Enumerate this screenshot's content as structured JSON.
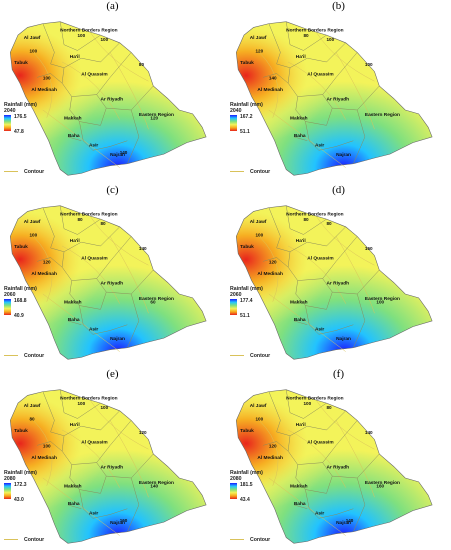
{
  "panels": [
    {
      "label": "(a)",
      "title": "Rainfall (mm)",
      "year": "2040",
      "max": "176.5",
      "min": "47.8",
      "contours": [
        "100",
        "100",
        "100",
        "100",
        "80",
        "120",
        "140"
      ]
    },
    {
      "label": "(b)",
      "title": "Rainfall (mm)",
      "year": "2040",
      "max": "167.2",
      "min": "51.1",
      "contours": [
        "80",
        "100",
        "120",
        "140",
        "100"
      ]
    },
    {
      "label": "(c)",
      "title": "Rainfall (mm)",
      "year": "2060",
      "max": "168.8",
      "min": "40.9",
      "contours": [
        "80",
        "80",
        "100",
        "120",
        "140",
        "60"
      ]
    },
    {
      "label": "(d)",
      "title": "Rainfall (mm)",
      "year": "2060",
      "max": "177.4",
      "min": "51.1",
      "contours": [
        "80",
        "80",
        "100",
        "120",
        "160",
        "100"
      ]
    },
    {
      "label": "(e)",
      "title": "Rainfall (mm)",
      "year": "2080",
      "max": "172.3",
      "min": "43.0",
      "contours": [
        "100",
        "100",
        "80",
        "100",
        "120",
        "140",
        "160"
      ]
    },
    {
      "label": "(f)",
      "title": "Rainfall (mm)",
      "year": "2080",
      "max": "181.5",
      "min": "43.4",
      "contours": [
        "100",
        "80",
        "100",
        "120",
        "140",
        "160",
        "140"
      ]
    }
  ],
  "regions": [
    "Al Jawf",
    "Northern Borders Region",
    "Tabuk",
    "Ha'il",
    "Al Quassim",
    "Al Medinah",
    "Ar Riyadh",
    "Eastern Region",
    "Makkah",
    "Baha",
    "Asir",
    "Najran"
  ],
  "legend_contour": "Contour",
  "colors": {
    "max": "#1a1aff",
    "high": "#22c3ff",
    "mid": "#7fe07f",
    "low_mid": "#f3f35a",
    "low": "#f7a81c",
    "min": "#e8251c",
    "contour": "#d9c25a",
    "boundary": "#8a8a5a"
  }
}
